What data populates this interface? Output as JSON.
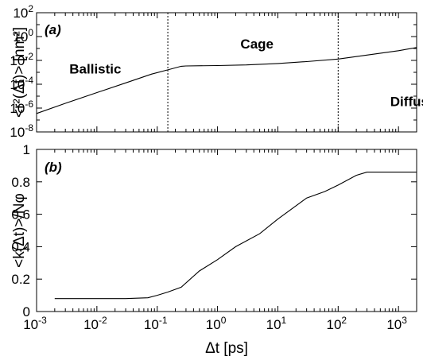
{
  "chart_data": [
    {
      "type": "line",
      "panel_label": "(a)",
      "ylabel": "<r²(Δt)> [nm²]",
      "x_scale": "log",
      "y_scale": "log",
      "xlim": [
        0.001,
        2000
      ],
      "ylim": [
        1e-08,
        100
      ],
      "y_ticks": [
        {
          "value": 1e-08,
          "base": "10",
          "exp": "-8"
        },
        {
          "value": 1e-06,
          "base": "10",
          "exp": "-6"
        },
        {
          "value": 0.0001,
          "base": "10",
          "exp": "-4"
        },
        {
          "value": 0.01,
          "base": "10",
          "exp": "-2"
        },
        {
          "value": 1,
          "base": "10",
          "exp": "0"
        },
        {
          "value": 100,
          "base": "10",
          "exp": "2"
        }
      ],
      "series": [
        {
          "x": [
            0.001,
            0.003,
            0.01,
            0.03,
            0.08,
            0.15,
            0.25,
            0.3,
            1,
            3,
            10,
            30,
            100,
            300,
            1000,
            2000
          ],
          "y": [
            3.5e-07,
            2.5e-06,
            2e-05,
            0.00013,
            0.0007,
            0.0016,
            0.0032,
            0.0034,
            0.0037,
            0.0042,
            0.0055,
            0.008,
            0.013,
            0.028,
            0.065,
            0.12
          ]
        }
      ],
      "vertical_lines_x": [
        0.15,
        100
      ],
      "annotations": [
        {
          "text": "Ballistic",
          "x": 0.0035,
          "y": 0.0008
        },
        {
          "text": "Cage",
          "x": 2.4,
          "y": 0.1
        },
        {
          "text": "Diffusive",
          "x": 730,
          "y": 1.5e-06
        }
      ]
    },
    {
      "type": "line",
      "panel_label": "(b)",
      "ylabel": "<k(Δt)>/Nφ",
      "xlabel": "Δt [ps]",
      "x_scale": "log",
      "xlim": [
        0.001,
        2000
      ],
      "ylim": [
        0,
        1
      ],
      "y_ticks": [
        {
          "value": 0,
          "label": "0"
        },
        {
          "value": 0.2,
          "label": "0.2"
        },
        {
          "value": 0.4,
          "label": "0.4"
        },
        {
          "value": 0.6,
          "label": "0.6"
        },
        {
          "value": 0.8,
          "label": "0.8"
        },
        {
          "value": 1,
          "label": "1"
        }
      ],
      "x_ticks": [
        {
          "value": 0.001,
          "base": "10",
          "exp": "-3"
        },
        {
          "value": 0.01,
          "base": "10",
          "exp": "-2"
        },
        {
          "value": 0.1,
          "base": "10",
          "exp": "-1"
        },
        {
          "value": 1,
          "base": "10",
          "exp": "0"
        },
        {
          "value": 10,
          "base": "10",
          "exp": "1"
        },
        {
          "value": 100,
          "base": "10",
          "exp": "2"
        },
        {
          "value": 1000,
          "base": "10",
          "exp": "3"
        }
      ],
      "series": [
        {
          "x": [
            0.002,
            0.01,
            0.03,
            0.07,
            0.1,
            0.15,
            0.25,
            0.5,
            1,
            2,
            5,
            10,
            30,
            60,
            100,
            200,
            300,
            2000
          ],
          "y": [
            0.08,
            0.08,
            0.08,
            0.085,
            0.1,
            0.12,
            0.15,
            0.25,
            0.32,
            0.4,
            0.48,
            0.57,
            0.7,
            0.74,
            0.78,
            0.84,
            0.86,
            0.86
          ]
        }
      ]
    }
  ]
}
